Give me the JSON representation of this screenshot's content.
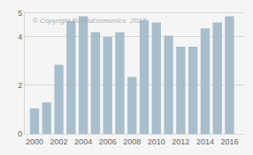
{
  "chart_data": {
    "type": "bar",
    "x": [
      2000,
      2001,
      2002,
      2003,
      2004,
      2005,
      2006,
      2007,
      2008,
      2009,
      2010,
      2011,
      2012,
      2013,
      2014,
      2015,
      2016
    ],
    "values": [
      1.05,
      1.3,
      2.85,
      4.65,
      4.85,
      4.2,
      4.0,
      4.2,
      2.35,
      4.7,
      4.6,
      4.05,
      3.6,
      3.6,
      4.35,
      4.6,
      4.85
    ],
    "color": "#a8becc",
    "xlim": [
      1999.2,
      2017.2
    ],
    "xticks": [
      2000,
      2002,
      2004,
      2006,
      2008,
      2010,
      2012,
      2014,
      2016
    ],
    "ylim": [
      0,
      5.05
    ],
    "yticks": [
      0,
      2,
      4,
      5
    ],
    "grid": true,
    "annotations": [
      "© Copyright FocusEconomics  2017"
    ]
  }
}
